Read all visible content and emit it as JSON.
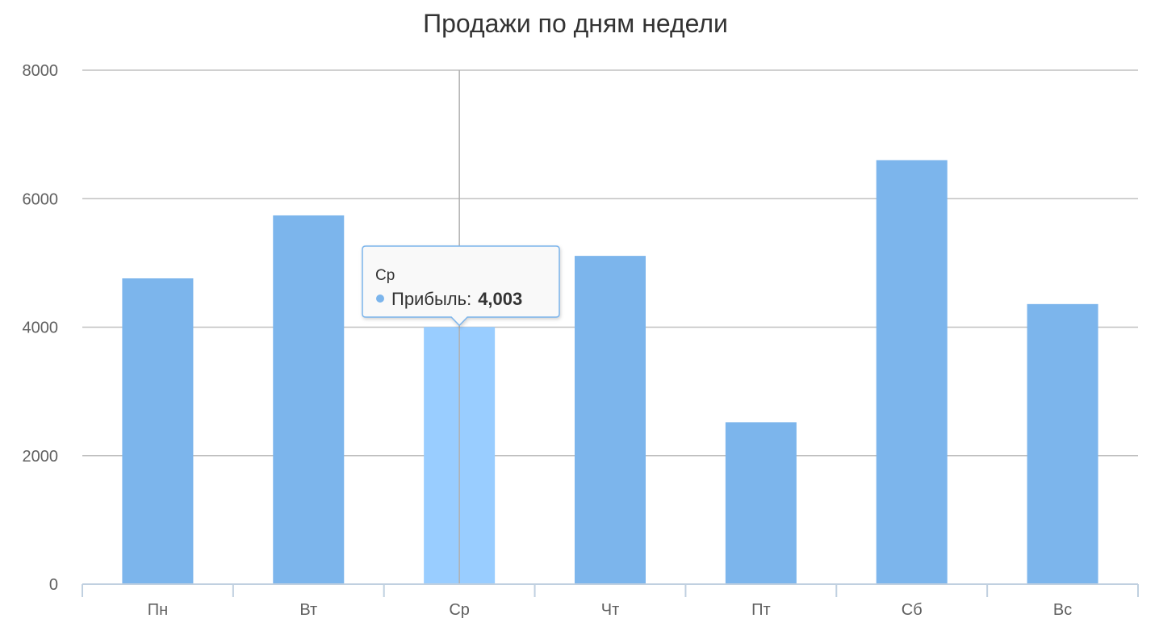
{
  "chart_data": {
    "type": "bar",
    "title": "Продажи по дням недели",
    "categories": [
      "Пн",
      "Вт",
      "Ср",
      "Чт",
      "Пт",
      "Сб",
      "Вс"
    ],
    "series": [
      {
        "name": "Прибыль",
        "values": [
          4760,
          5740,
          4003,
          5110,
          2520,
          6600,
          4360
        ],
        "color": "#7cb5ec"
      }
    ],
    "ylim": [
      0,
      8000
    ],
    "yticks": [
      0,
      2000,
      4000,
      6000,
      8000
    ],
    "grid": true,
    "legend": "none",
    "hover_color": "#99cdff",
    "tooltip": {
      "category_index": 2,
      "header": "Ср",
      "series_name": "Прибыль",
      "separator": ":",
      "value_text": "4,003"
    }
  }
}
